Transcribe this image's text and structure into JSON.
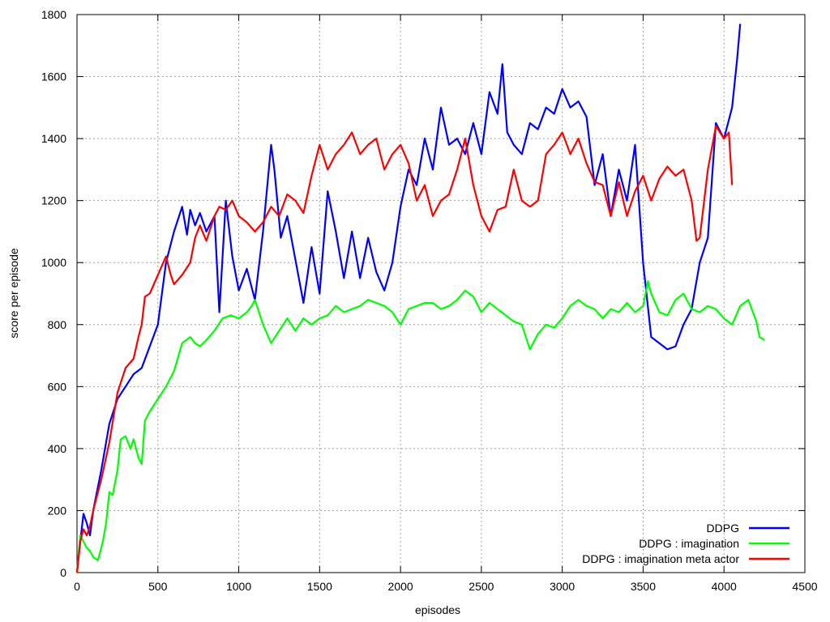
{
  "chart_data": {
    "type": "line",
    "title": "",
    "xlabel": "episodes",
    "ylabel": "score per episode",
    "xlim": [
      0,
      4500
    ],
    "ylim": [
      0,
      1800
    ],
    "xticks": [
      0,
      500,
      1000,
      1500,
      2000,
      2500,
      3000,
      3500,
      4000,
      4500
    ],
    "yticks": [
      0,
      200,
      400,
      600,
      800,
      1000,
      1200,
      1400,
      1600,
      1800
    ],
    "grid": true,
    "legend_position": "bottom-right",
    "series": [
      {
        "name": "DDPG",
        "color": "#0000ff",
        "x": [
          0,
          20,
          40,
          60,
          80,
          100,
          150,
          200,
          250,
          300,
          350,
          400,
          450,
          500,
          550,
          600,
          650,
          680,
          700,
          730,
          760,
          800,
          850,
          880,
          920,
          960,
          1000,
          1050,
          1100,
          1150,
          1200,
          1220,
          1260,
          1300,
          1350,
          1400,
          1450,
          1500,
          1550,
          1600,
          1650,
          1700,
          1750,
          1800,
          1850,
          1900,
          1950,
          2000,
          2050,
          2100,
          2150,
          2200,
          2250,
          2300,
          2350,
          2400,
          2450,
          2500,
          2550,
          2600,
          2630,
          2660,
          2700,
          2750,
          2800,
          2850,
          2900,
          2950,
          3000,
          3050,
          3100,
          3150,
          3200,
          3250,
          3300,
          3350,
          3400,
          3450,
          3500,
          3550,
          3600,
          3650,
          3700,
          3750,
          3800,
          3850,
          3900,
          3950,
          4000,
          4050,
          4080,
          4100
        ],
        "y": [
          0,
          100,
          190,
          160,
          120,
          200,
          330,
          480,
          560,
          600,
          640,
          660,
          730,
          800,
          1000,
          1100,
          1180,
          1090,
          1170,
          1120,
          1160,
          1100,
          1150,
          840,
          1200,
          1020,
          910,
          980,
          880,
          1100,
          1380,
          1300,
          1080,
          1150,
          1010,
          870,
          1050,
          900,
          1230,
          1100,
          950,
          1100,
          950,
          1080,
          970,
          910,
          1000,
          1180,
          1300,
          1250,
          1400,
          1300,
          1500,
          1380,
          1400,
          1350,
          1450,
          1350,
          1550,
          1480,
          1640,
          1420,
          1380,
          1350,
          1450,
          1430,
          1500,
          1480,
          1560,
          1500,
          1520,
          1470,
          1250,
          1350,
          1150,
          1300,
          1200,
          1380,
          1000,
          760,
          740,
          720,
          730,
          800,
          850,
          1000,
          1080,
          1450,
          1400,
          1500,
          1650,
          1770
        ]
      },
      {
        "name": "DDPG : imagination",
        "color": "#00ff00",
        "x": [
          0,
          20,
          40,
          60,
          80,
          100,
          130,
          160,
          180,
          200,
          220,
          250,
          270,
          300,
          330,
          350,
          380,
          400,
          420,
          450,
          500,
          550,
          600,
          650,
          700,
          730,
          760,
          800,
          850,
          900,
          950,
          1000,
          1050,
          1080,
          1100,
          1150,
          1200,
          1250,
          1300,
          1350,
          1400,
          1450,
          1500,
          1550,
          1600,
          1650,
          1700,
          1750,
          1800,
          1850,
          1900,
          1950,
          2000,
          2050,
          2100,
          2150,
          2200,
          2250,
          2300,
          2350,
          2400,
          2450,
          2500,
          2550,
          2600,
          2650,
          2700,
          2750,
          2800,
          2850,
          2900,
          2950,
          3000,
          3050,
          3100,
          3150,
          3200,
          3250,
          3300,
          3350,
          3400,
          3450,
          3500,
          3530,
          3550,
          3600,
          3650,
          3700,
          3750,
          3800,
          3850,
          3900,
          3950,
          4000,
          4050,
          4100,
          4150,
          4200,
          4220,
          4250
        ],
        "y": [
          0,
          120,
          100,
          80,
          70,
          50,
          40,
          100,
          160,
          260,
          250,
          330,
          430,
          440,
          400,
          430,
          370,
          350,
          490,
          520,
          560,
          600,
          650,
          740,
          760,
          740,
          730,
          750,
          780,
          820,
          830,
          820,
          840,
          860,
          880,
          800,
          740,
          780,
          820,
          780,
          820,
          800,
          820,
          830,
          860,
          840,
          850,
          860,
          880,
          870,
          860,
          840,
          800,
          850,
          860,
          870,
          870,
          850,
          860,
          880,
          910,
          890,
          840,
          870,
          850,
          830,
          810,
          800,
          720,
          770,
          800,
          790,
          820,
          860,
          880,
          860,
          850,
          820,
          850,
          840,
          870,
          840,
          860,
          940,
          900,
          840,
          830,
          880,
          900,
          850,
          840,
          860,
          850,
          820,
          800,
          860,
          880,
          810,
          760,
          750
        ]
      },
      {
        "name": "DDPG : imagination meta actor",
        "color": "#ff0000",
        "x": [
          0,
          20,
          40,
          60,
          80,
          100,
          150,
          200,
          250,
          300,
          350,
          380,
          400,
          420,
          450,
          500,
          550,
          580,
          600,
          650,
          700,
          730,
          760,
          800,
          850,
          880,
          920,
          960,
          1000,
          1050,
          1100,
          1150,
          1200,
          1250,
          1300,
          1350,
          1400,
          1450,
          1500,
          1550,
          1600,
          1650,
          1700,
          1750,
          1800,
          1850,
          1900,
          1950,
          2000,
          2050,
          2100,
          2150,
          2200,
          2250,
          2300,
          2350,
          2400,
          2450,
          2500,
          2550,
          2600,
          2650,
          2700,
          2750,
          2800,
          2850,
          2900,
          2950,
          3000,
          3050,
          3100,
          3150,
          3200,
          3250,
          3300,
          3350,
          3400,
          3450,
          3500,
          3550,
          3600,
          3650,
          3700,
          3750,
          3800,
          3830,
          3850,
          3900,
          3950,
          4000,
          4030,
          4050
        ],
        "y": [
          0,
          100,
          140,
          120,
          150,
          200,
          300,
          420,
          580,
          660,
          690,
          760,
          800,
          890,
          900,
          960,
          1020,
          960,
          930,
          960,
          1000,
          1080,
          1120,
          1070,
          1150,
          1180,
          1170,
          1200,
          1150,
          1130,
          1100,
          1130,
          1180,
          1150,
          1220,
          1200,
          1160,
          1280,
          1380,
          1300,
          1350,
          1380,
          1420,
          1350,
          1380,
          1400,
          1300,
          1350,
          1380,
          1320,
          1200,
          1250,
          1150,
          1200,
          1220,
          1300,
          1400,
          1250,
          1150,
          1100,
          1170,
          1180,
          1300,
          1200,
          1180,
          1200,
          1350,
          1380,
          1420,
          1350,
          1400,
          1320,
          1260,
          1250,
          1150,
          1260,
          1150,
          1230,
          1280,
          1200,
          1270,
          1310,
          1280,
          1300,
          1200,
          1070,
          1080,
          1300,
          1440,
          1400,
          1420,
          1250
        ]
      }
    ]
  }
}
